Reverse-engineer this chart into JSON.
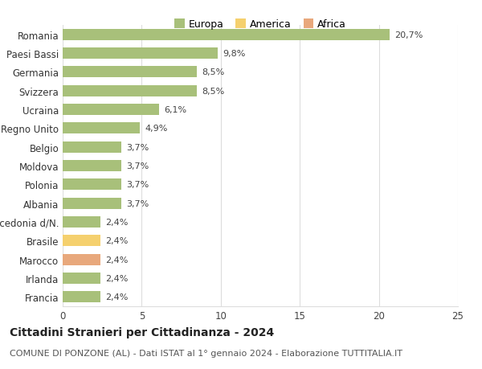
{
  "categories": [
    "Francia",
    "Irlanda",
    "Marocco",
    "Brasile",
    "Macedonia d/N.",
    "Albania",
    "Polonia",
    "Moldova",
    "Belgio",
    "Regno Unito",
    "Ucraina",
    "Svizzera",
    "Germania",
    "Paesi Bassi",
    "Romania"
  ],
  "values": [
    2.4,
    2.4,
    2.4,
    2.4,
    2.4,
    3.7,
    3.7,
    3.7,
    3.7,
    4.9,
    6.1,
    8.5,
    8.5,
    9.8,
    20.7
  ],
  "colors": [
    "#a8c07a",
    "#a8c07a",
    "#e8a87c",
    "#f5d06e",
    "#a8c07a",
    "#a8c07a",
    "#a8c07a",
    "#a8c07a",
    "#a8c07a",
    "#a8c07a",
    "#a8c07a",
    "#a8c07a",
    "#a8c07a",
    "#a8c07a",
    "#a8c07a"
  ],
  "labels": [
    "2,4%",
    "2,4%",
    "2,4%",
    "2,4%",
    "2,4%",
    "3,7%",
    "3,7%",
    "3,7%",
    "3,7%",
    "4,9%",
    "6,1%",
    "8,5%",
    "8,5%",
    "9,8%",
    "20,7%"
  ],
  "legend": [
    {
      "label": "Europa",
      "color": "#a8c07a"
    },
    {
      "label": "America",
      "color": "#f5d06e"
    },
    {
      "label": "Africa",
      "color": "#e8a87c"
    }
  ],
  "title": "Cittadini Stranieri per Cittadinanza - 2024",
  "subtitle": "COMUNE DI PONZONE (AL) - Dati ISTAT al 1° gennaio 2024 - Elaborazione TUTTITALIA.IT",
  "xlim": [
    0,
    25
  ],
  "xticks": [
    0,
    5,
    10,
    15,
    20,
    25
  ],
  "background_color": "#ffffff",
  "bar_height": 0.6,
  "grid_color": "#dddddd",
  "title_fontsize": 10,
  "subtitle_fontsize": 8,
  "label_fontsize": 8,
  "tick_fontsize": 8.5
}
